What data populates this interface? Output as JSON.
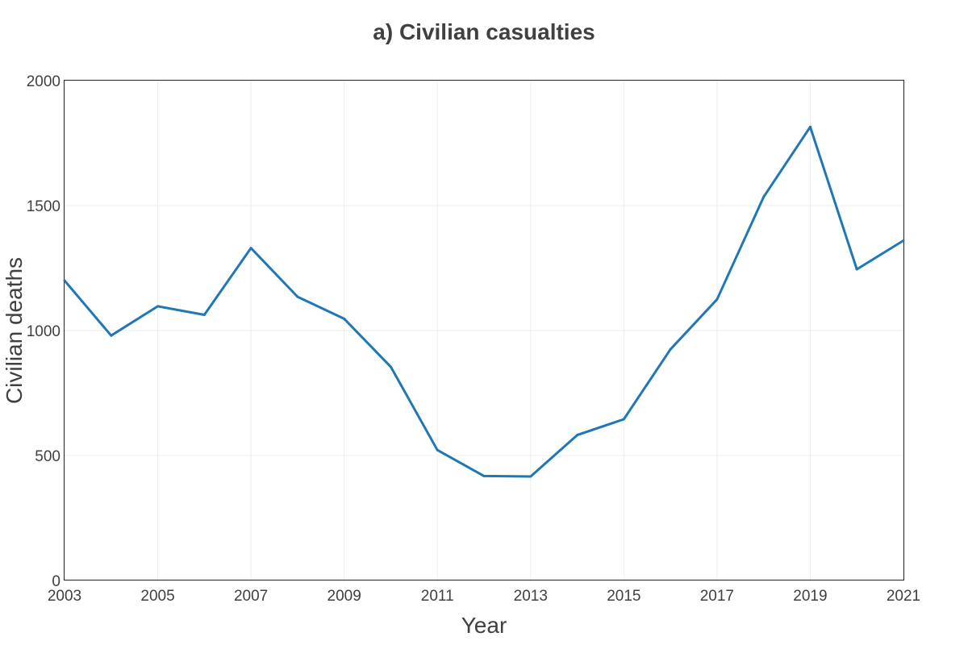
{
  "chart_data": {
    "type": "line",
    "title": "a) Civilian casualties",
    "xlabel": "Year",
    "ylabel": "Civilian deaths",
    "xlim": [
      2003,
      2021
    ],
    "ylim": [
      0,
      2000
    ],
    "x_ticks": [
      2003,
      2005,
      2007,
      2009,
      2011,
      2013,
      2015,
      2017,
      2019,
      2021
    ],
    "y_ticks": [
      0,
      500,
      1000,
      1500,
      2000
    ],
    "grid": true,
    "legend": "none",
    "series": [
      {
        "name": "Civilian deaths",
        "color": "#1f77b4",
        "x": [
          2003,
          2004,
          2005,
          2006,
          2007,
          2008,
          2009,
          2010,
          2011,
          2012,
          2013,
          2014,
          2015,
          2016,
          2017,
          2018,
          2019,
          2020,
          2021
        ],
        "values": [
          1200,
          980,
          1097,
          1063,
          1330,
          1135,
          1047,
          855,
          522,
          418,
          416,
          582,
          645,
          925,
          1125,
          1535,
          1815,
          1245,
          1360
        ]
      }
    ]
  }
}
